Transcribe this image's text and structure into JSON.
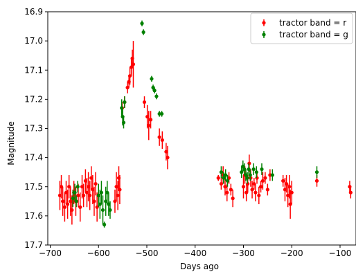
{
  "chart_data": {
    "type": "scatter",
    "title": "",
    "xlabel": "Days ago",
    "ylabel": "Magnitude",
    "xlim": [
      -705,
      -67
    ],
    "ylim": [
      17.7,
      16.9
    ],
    "y_inverted": true,
    "xticks": [
      -700,
      -600,
      -500,
      -400,
      -300,
      -200,
      -100
    ],
    "yticks": [
      16.9,
      17.0,
      17.1,
      17.2,
      17.3,
      17.4,
      17.5,
      17.6,
      17.7
    ],
    "grid": false,
    "legend_position": "top-right",
    "series": [
      {
        "name": "tractor band = r",
        "color": "#ff0000",
        "points": [
          [
            -680,
            17.53,
            0.05
          ],
          [
            -677,
            17.5,
            0.04
          ],
          [
            -674,
            17.55,
            0.05
          ],
          [
            -670,
            17.57,
            0.05
          ],
          [
            -667,
            17.52,
            0.04
          ],
          [
            -664,
            17.56,
            0.05
          ],
          [
            -661,
            17.5,
            0.04
          ],
          [
            -658,
            17.55,
            0.05
          ],
          [
            -655,
            17.58,
            0.05
          ],
          [
            -651,
            17.52,
            0.04
          ],
          [
            -647,
            17.55,
            0.05
          ],
          [
            -642,
            17.53,
            0.04
          ],
          [
            -638,
            17.57,
            0.05
          ],
          [
            -634,
            17.5,
            0.04
          ],
          [
            -631,
            17.53,
            0.04
          ],
          [
            -627,
            17.48,
            0.04
          ],
          [
            -624,
            17.52,
            0.05
          ],
          [
            -621,
            17.5,
            0.05
          ],
          [
            -618,
            17.53,
            0.05
          ],
          [
            -615,
            17.47,
            0.04
          ],
          [
            -612,
            17.51,
            0.05
          ],
          [
            -609,
            17.55,
            0.05
          ],
          [
            -606,
            17.49,
            0.04
          ],
          [
            -603,
            17.57,
            0.05
          ],
          [
            -566,
            17.55,
            0.04
          ],
          [
            -563,
            17.5,
            0.05
          ],
          [
            -560,
            17.53,
            0.05
          ],
          [
            -558,
            17.47,
            0.04
          ],
          [
            -556,
            17.51,
            0.05
          ],
          [
            -551,
            17.23,
            0.02
          ],
          [
            -546,
            17.21,
            0.02
          ],
          [
            -540,
            17.16,
            0.02
          ],
          [
            -537,
            17.14,
            0.02
          ],
          [
            -535,
            17.12,
            0.03
          ],
          [
            -532,
            17.09,
            0.03
          ],
          [
            -530,
            17.06,
            0.03
          ],
          [
            -528,
            17.08,
            0.08
          ],
          [
            -505,
            17.21,
            0.02
          ],
          [
            -499,
            17.26,
            0.04
          ],
          [
            -496,
            17.29,
            0.05
          ],
          [
            -492,
            17.27,
            0.03
          ],
          [
            -474,
            17.33,
            0.03
          ],
          [
            -468,
            17.34,
            0.03
          ],
          [
            -460,
            17.38,
            0.03
          ],
          [
            -457,
            17.4,
            0.04
          ],
          [
            -352,
            17.47,
            0.01
          ],
          [
            -346,
            17.49,
            0.02
          ],
          [
            -342,
            17.46,
            0.03
          ],
          [
            -338,
            17.5,
            0.03
          ],
          [
            -334,
            17.52,
            0.03
          ],
          [
            -330,
            17.47,
            0.02
          ],
          [
            -326,
            17.51,
            0.02
          ],
          [
            -322,
            17.54,
            0.03
          ],
          [
            -300,
            17.5,
            0.04
          ],
          [
            -297,
            17.46,
            0.03
          ],
          [
            -294,
            17.52,
            0.03
          ],
          [
            -291,
            17.49,
            0.03
          ],
          [
            -288,
            17.42,
            0.03
          ],
          [
            -285,
            17.47,
            0.03
          ],
          [
            -282,
            17.51,
            0.03
          ],
          [
            -278,
            17.49,
            0.02
          ],
          [
            -275,
            17.52,
            0.03
          ],
          [
            -272,
            17.47,
            0.02
          ],
          [
            -268,
            17.53,
            0.03
          ],
          [
            -264,
            17.5,
            0.02
          ],
          [
            -260,
            17.48,
            0.03
          ],
          [
            -255,
            17.47,
            0.02
          ],
          [
            -250,
            17.51,
            0.02
          ],
          [
            -245,
            17.46,
            0.02
          ],
          [
            -218,
            17.48,
            0.02
          ],
          [
            -214,
            17.51,
            0.04
          ],
          [
            -211,
            17.49,
            0.03
          ],
          [
            -208,
            17.53,
            0.04
          ],
          [
            -205,
            17.5,
            0.04
          ],
          [
            -203,
            17.56,
            0.05
          ],
          [
            -200,
            17.52,
            0.04
          ],
          [
            -148,
            17.48,
            0.02
          ],
          [
            -80,
            17.5,
            0.02
          ],
          [
            -78,
            17.52,
            0.02
          ]
        ]
      },
      {
        "name": "tractor band = g",
        "color": "#008000",
        "points": [
          [
            -653,
            17.54,
            0.03
          ],
          [
            -649,
            17.52,
            0.03
          ],
          [
            -646,
            17.55,
            0.02
          ],
          [
            -643,
            17.5,
            0.02
          ],
          [
            -600,
            17.53,
            0.04
          ],
          [
            -597,
            17.56,
            0.05
          ],
          [
            -594,
            17.52,
            0.04
          ],
          [
            -591,
            17.58,
            0.05
          ],
          [
            -585,
            17.55,
            0.05
          ],
          [
            -582,
            17.52,
            0.04
          ],
          [
            -579,
            17.56,
            0.04
          ],
          [
            -576,
            17.58,
            0.03
          ],
          [
            -588,
            17.63,
            0.01
          ],
          [
            -552,
            17.23,
            0.03
          ],
          [
            -550,
            17.26,
            0.03
          ],
          [
            -548,
            17.28,
            0.02
          ],
          [
            -546,
            17.21,
            0.02
          ],
          [
            -510,
            16.94,
            0.01
          ],
          [
            -507,
            16.97,
            0.01
          ],
          [
            -490,
            17.13,
            0.01
          ],
          [
            -487,
            17.16,
            0.01
          ],
          [
            -484,
            17.17,
            0.01
          ],
          [
            -480,
            17.19,
            0.01
          ],
          [
            -474,
            17.25,
            0.01
          ],
          [
            -469,
            17.25,
            0.01
          ],
          [
            -346,
            17.45,
            0.02
          ],
          [
            -341,
            17.47,
            0.02
          ],
          [
            -337,
            17.46,
            0.02
          ],
          [
            -333,
            17.48,
            0.02
          ],
          [
            -304,
            17.45,
            0.02
          ],
          [
            -301,
            17.43,
            0.02
          ],
          [
            -298,
            17.44,
            0.02
          ],
          [
            -295,
            17.46,
            0.02
          ],
          [
            -292,
            17.47,
            0.02
          ],
          [
            -289,
            17.44,
            0.02
          ],
          [
            -286,
            17.46,
            0.02
          ],
          [
            -279,
            17.44,
            0.02
          ],
          [
            -273,
            17.45,
            0.02
          ],
          [
            -262,
            17.44,
            0.02
          ],
          [
            -240,
            17.46,
            0.02
          ],
          [
            -148,
            17.45,
            0.02
          ]
        ]
      }
    ]
  }
}
